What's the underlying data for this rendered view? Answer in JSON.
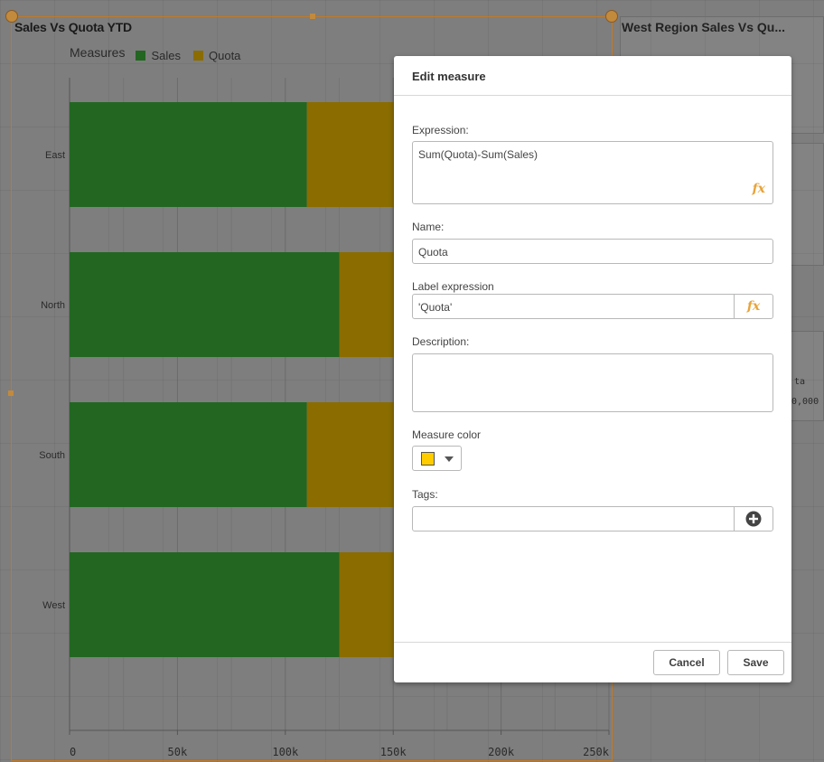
{
  "chart_panel": {
    "title": "Sales Vs Quota YTD",
    "legend_title": "Measures"
  },
  "right_panel": {
    "title": "West Region Sales Vs Qu...",
    "partial_label": "ta",
    "partial_value": "0,000"
  },
  "chart_data": {
    "type": "bar",
    "orientation": "horizontal",
    "stacked": true,
    "title": "Sales Vs Quota YTD",
    "legend_title": "Measures",
    "categories": [
      "East",
      "North",
      "South",
      "West"
    ],
    "series": [
      {
        "name": "Sales",
        "color": "#226622",
        "values": [
          110000,
          125000,
          110000,
          125000
        ]
      },
      {
        "name": "Quota",
        "color": "#8a6c00",
        "values": [
          140000,
          125000,
          140000,
          125000
        ]
      }
    ],
    "xlim": [
      0,
      250000
    ],
    "x_ticks": [
      "0",
      "50k",
      "100k",
      "150k",
      "200k",
      "250k"
    ],
    "grid": true,
    "legend_position": "top-left"
  },
  "dialog": {
    "title": "Edit measure",
    "expression_label": "Expression:",
    "expression_value": "Sum(Quota)-Sum(Sales)",
    "name_label": "Name:",
    "name_value": "Quota",
    "label_expression_label": "Label expression",
    "label_expression_value": "'Quota'",
    "description_label": "Description:",
    "description_value": "",
    "measure_color_label": "Measure color",
    "measure_color": "#ffcc00",
    "tags_label": "Tags:",
    "tags_value": "",
    "fx_icon_text": "fx",
    "cancel_label": "Cancel",
    "save_label": "Save"
  }
}
